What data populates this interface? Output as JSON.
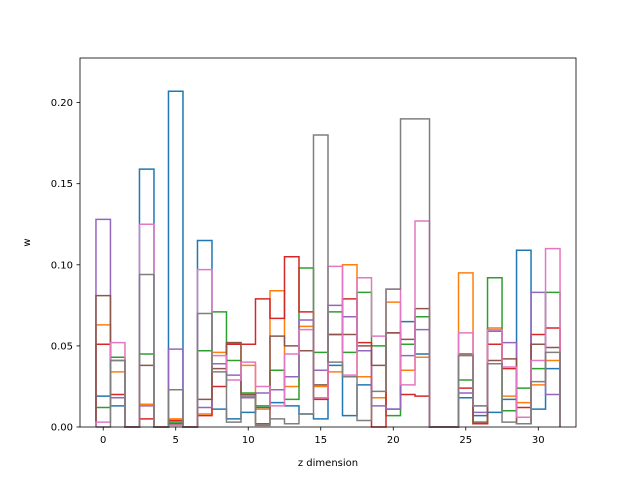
{
  "chart_data": {
    "type": "histogram-step",
    "title": "",
    "xlabel": "z dimension",
    "ylabel": "w",
    "xlim": [
      -1.6,
      32.6
    ],
    "ylim": [
      0.0,
      0.2275
    ],
    "x_ticks": [
      0,
      5,
      10,
      15,
      20,
      25,
      30
    ],
    "y_ticks": [
      0.0,
      0.05,
      0.1,
      0.15,
      0.2
    ],
    "y_tick_labels": [
      "0.00",
      "0.05",
      "0.10",
      "0.15",
      "0.20"
    ],
    "grid": false,
    "legend": "none",
    "bin_width": 1,
    "categories": [
      0,
      1,
      2,
      3,
      4,
      5,
      6,
      7,
      8,
      9,
      10,
      11,
      12,
      13,
      14,
      15,
      16,
      17,
      18,
      19,
      20,
      21,
      22,
      23,
      24,
      25,
      26,
      27,
      28,
      29,
      30,
      31
    ],
    "series": [
      {
        "color": "#1f77b4",
        "values": [
          0.019,
          0.013,
          0.0,
          0.159,
          0.0,
          0.207,
          0.0,
          0.115,
          0.011,
          0.005,
          0.009,
          0.012,
          0.015,
          0.013,
          0.008,
          0.005,
          0.038,
          0.007,
          0.026,
          0.018,
          0.011,
          0.065,
          0.045,
          0.0,
          0.0,
          0.018,
          0.007,
          0.009,
          0.017,
          0.109,
          0.011,
          0.036
        ]
      },
      {
        "color": "#ff7f0e",
        "values": [
          0.063,
          0.034,
          0.0,
          0.014,
          0.0,
          0.005,
          0.0,
          0.008,
          0.046,
          0.052,
          0.038,
          0.011,
          0.084,
          0.025,
          0.062,
          0.025,
          0.034,
          0.1,
          0.031,
          0.018,
          0.077,
          0.035,
          0.043,
          0.0,
          0.0,
          0.095,
          0.002,
          0.061,
          0.019,
          0.015,
          0.026,
          0.041
        ]
      },
      {
        "color": "#2ca02c",
        "values": [
          0.012,
          0.043,
          0.0,
          0.045,
          0.0,
          0.003,
          0.0,
          0.047,
          0.071,
          0.041,
          0.021,
          0.013,
          0.035,
          0.017,
          0.098,
          0.046,
          0.071,
          0.046,
          0.083,
          0.05,
          0.007,
          0.051,
          0.068,
          0.0,
          0.0,
          0.029,
          0.002,
          0.092,
          0.01,
          0.024,
          0.036,
          0.083
        ]
      },
      {
        "color": "#d62728",
        "values": [
          0.051,
          0.02,
          0.0,
          0.005,
          0.0,
          0.004,
          0.0,
          0.007,
          0.025,
          0.051,
          0.051,
          0.079,
          0.067,
          0.105,
          0.071,
          0.017,
          0.057,
          0.079,
          0.052,
          0.0,
          0.058,
          0.02,
          0.019,
          0.0,
          0.0,
          0.024,
          0.002,
          0.051,
          0.036,
          0.012,
          0.057,
          0.061
        ]
      },
      {
        "color": "#9467bd",
        "values": [
          0.128,
          0.018,
          0.0,
          0.013,
          0.0,
          0.048,
          0.0,
          0.012,
          0.039,
          0.032,
          0.018,
          0.021,
          0.023,
          0.031,
          0.066,
          0.035,
          0.075,
          0.068,
          0.047,
          0.013,
          0.011,
          0.044,
          0.06,
          0.0,
          0.0,
          0.021,
          0.009,
          0.059,
          0.052,
          0.002,
          0.083,
          0.02
        ]
      },
      {
        "color": "#8c564b",
        "values": [
          0.081,
          0.041,
          0.0,
          0.038,
          0.0,
          0.002,
          0.0,
          0.017,
          0.036,
          0.052,
          0.02,
          0.002,
          0.056,
          0.05,
          0.047,
          0.026,
          0.057,
          0.057,
          0.05,
          0.038,
          0.058,
          0.054,
          0.073,
          0.0,
          0.0,
          0.045,
          0.003,
          0.041,
          0.042,
          0.002,
          0.051,
          0.049
        ]
      },
      {
        "color": "#e377c2",
        "values": [
          0.003,
          0.052,
          0.0,
          0.125,
          0.0,
          0.001,
          0.0,
          0.097,
          0.044,
          0.029,
          0.04,
          0.025,
          0.013,
          0.045,
          0.06,
          0.018,
          0.099,
          0.032,
          0.092,
          0.056,
          0.085,
          0.026,
          0.127,
          0.0,
          0.0,
          0.058,
          0.013,
          0.06,
          0.037,
          0.006,
          0.041,
          0.11
        ]
      },
      {
        "color": "#7f7f7f",
        "values": [
          0.0,
          0.041,
          0.0,
          0.094,
          0.0,
          0.023,
          0.0,
          0.07,
          0.034,
          0.003,
          0.019,
          0.001,
          0.005,
          0.002,
          0.008,
          0.18,
          0.04,
          0.031,
          0.004,
          0.022,
          0.085,
          0.19,
          0.19,
          0.0,
          0.0,
          0.044,
          0.013,
          0.039,
          0.003,
          0.002,
          0.028,
          0.046
        ]
      }
    ]
  }
}
